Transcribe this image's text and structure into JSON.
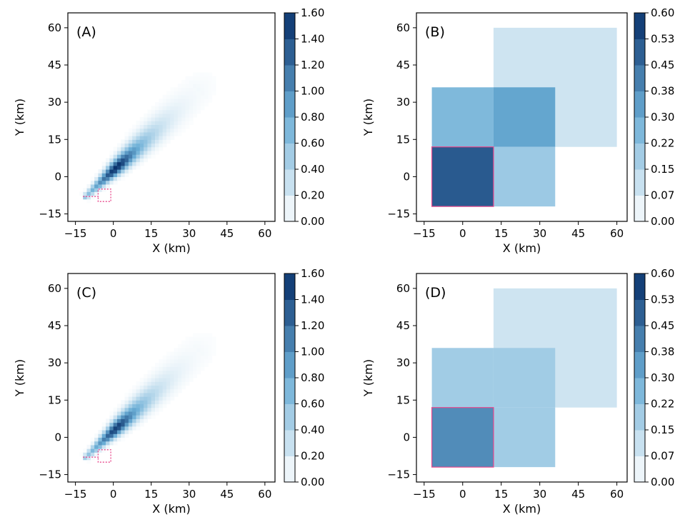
{
  "colors": {
    "cmap_low": "#ffffff",
    "cmap_mid": "#6baed6",
    "cmap_high": "#08306b",
    "source_outline": "#e8488c",
    "axes": "#000000"
  },
  "chart_data": [
    {
      "type": "heatmap",
      "panel_label": "(A)",
      "xlabel": "X (km)",
      "ylabel": "Y (km)",
      "xlim": [
        -18,
        64
      ],
      "ylim": [
        -18,
        66
      ],
      "xticks": [
        "−15",
        "0",
        "15",
        "30",
        "45",
        "60"
      ],
      "yticks": [
        "−15",
        "0",
        "15",
        "30",
        "45",
        "60"
      ],
      "colorbar": {
        "min": 0.0,
        "max": 1.6,
        "ticks": [
          "0.00",
          "0.20",
          "0.40",
          "0.60",
          "0.80",
          "1.00",
          "1.20",
          "1.40",
          "1.60"
        ]
      },
      "plume": {
        "from": [
          -10,
          -7
        ],
        "to": [
          51,
          52
        ],
        "peak_value": 1.6,
        "peak_at": [
          2,
          3
        ]
      },
      "source_region": [
        [
          -12,
          -8
        ],
        [
          -6,
          -8
        ],
        [
          -6,
          -5
        ],
        [
          -1,
          -5
        ],
        [
          -1,
          -10
        ],
        [
          -6,
          -10
        ],
        [
          -6,
          -8
        ]
      ]
    },
    {
      "type": "heatmap",
      "panel_label": "(B)",
      "xlabel": "X (km)",
      "ylabel": "Y (km)",
      "xlim": [
        -18,
        64
      ],
      "ylim": [
        -18,
        66
      ],
      "xticks": [
        "−15",
        "0",
        "15",
        "30",
        "45",
        "60"
      ],
      "yticks": [
        "−15",
        "0",
        "15",
        "30",
        "45",
        "60"
      ],
      "colorbar": {
        "min": 0.0,
        "max": 0.6,
        "ticks": [
          "0.00",
          "0.07",
          "0.15",
          "0.22",
          "0.30",
          "0.38",
          "0.45",
          "0.53",
          "0.60"
        ]
      },
      "cells": [
        {
          "x": [
            12,
            60
          ],
          "y": [
            12,
            60
          ],
          "value": 0.1
        },
        {
          "x": [
            -12,
            12
          ],
          "y": [
            12,
            36
          ],
          "value": 0.26
        },
        {
          "x": [
            12,
            36
          ],
          "y": [
            12,
            36
          ],
          "value": 0.32
        },
        {
          "x": [
            12,
            36
          ],
          "y": [
            -12,
            12
          ],
          "value": 0.2
        },
        {
          "x": [
            -12,
            12
          ],
          "y": [
            -12,
            12
          ],
          "value": 0.5
        }
      ],
      "source_cell": {
        "x": [
          -12,
          12
        ],
        "y": [
          -12,
          12
        ]
      }
    },
    {
      "type": "heatmap",
      "panel_label": "(C)",
      "xlabel": "X (km)",
      "ylabel": "Y (km)",
      "xlim": [
        -18,
        64
      ],
      "ylim": [
        -18,
        66
      ],
      "xticks": [
        "−15",
        "0",
        "15",
        "30",
        "45",
        "60"
      ],
      "yticks": [
        "−15",
        "0",
        "15",
        "30",
        "45",
        "60"
      ],
      "colorbar": {
        "min": 0.0,
        "max": 1.6,
        "ticks": [
          "0.00",
          "0.20",
          "0.40",
          "0.60",
          "0.80",
          "1.00",
          "1.20",
          "1.40",
          "1.60"
        ]
      },
      "plume": {
        "from": [
          -10,
          -7
        ],
        "to": [
          51,
          52
        ],
        "peak_value": 1.5,
        "peak_at": [
          2,
          3
        ]
      },
      "source_region": [
        [
          -12,
          -8
        ],
        [
          -6,
          -8
        ],
        [
          -6,
          -5
        ],
        [
          -1,
          -5
        ],
        [
          -1,
          -10
        ],
        [
          -6,
          -10
        ],
        [
          -6,
          -8
        ]
      ]
    },
    {
      "type": "heatmap",
      "panel_label": "(D)",
      "xlabel": "X (km)",
      "ylabel": "Y (km)",
      "xlim": [
        -18,
        64
      ],
      "ylim": [
        -18,
        66
      ],
      "xticks": [
        "−15",
        "0",
        "15",
        "30",
        "45",
        "60"
      ],
      "yticks": [
        "−15",
        "0",
        "15",
        "30",
        "45",
        "60"
      ],
      "colorbar": {
        "min": 0.0,
        "max": 0.6,
        "ticks": [
          "0.00",
          "0.07",
          "0.15",
          "0.22",
          "0.30",
          "0.38",
          "0.45",
          "0.53",
          "0.60"
        ]
      },
      "cells": [
        {
          "x": [
            12,
            60
          ],
          "y": [
            12,
            60
          ],
          "value": 0.1
        },
        {
          "x": [
            -12,
            12
          ],
          "y": [
            12,
            36
          ],
          "value": 0.19
        },
        {
          "x": [
            12,
            36
          ],
          "y": [
            12,
            36
          ],
          "value": 0.19
        },
        {
          "x": [
            12,
            36
          ],
          "y": [
            -12,
            12
          ],
          "value": 0.19
        },
        {
          "x": [
            -12,
            12
          ],
          "y": [
            -12,
            12
          ],
          "value": 0.38
        }
      ],
      "source_cell": {
        "x": [
          -12,
          12
        ],
        "y": [
          -12,
          12
        ]
      }
    }
  ]
}
